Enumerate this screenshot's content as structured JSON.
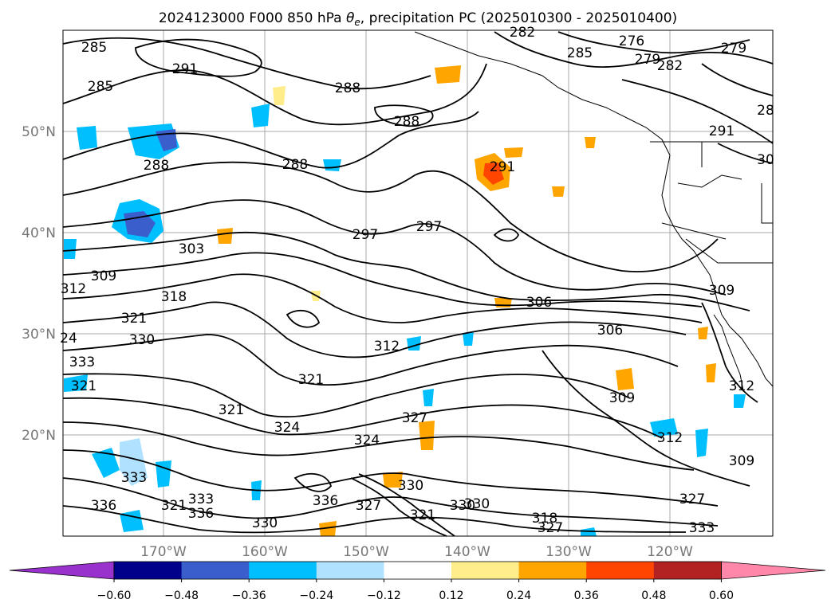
{
  "title": "2024123000 F000 850 hPa θe, precipitation PC (2025010300 - 2025010400)",
  "title_parts": {
    "pre": "2024123000 F000 850 hPa ",
    "theta": "θ",
    "sub": "e",
    "post": ", precipitation PC (2025010300 - 2025010400)"
  },
  "lat_labels": [
    "50°N",
    "40°N",
    "30°N",
    "20°N"
  ],
  "lon_labels": [
    "170°W",
    "160°W",
    "150°W",
    "140°W",
    "130°W",
    "120°W"
  ],
  "colorbar": {
    "ticks": [
      "−0.60",
      "−0.48",
      "−0.36",
      "−0.24",
      "−0.12",
      "0.12",
      "0.24",
      "0.36",
      "0.48",
      "0.60"
    ],
    "colors": [
      "#9932cc",
      "#00008b",
      "#3a5fcd",
      "#00bfff",
      "#b0e2ff",
      "#ffffff",
      "#ffec8b",
      "#ffa500",
      "#ff4500",
      "#b22222",
      "#ff88aa"
    ],
    "under_color": "#9932cc",
    "over_color": "#ff88aa"
  },
  "contour_labels": [
    "285",
    "291",
    "285",
    "288",
    "288",
    "282",
    "276",
    "285",
    "279",
    "282",
    "279",
    "28",
    "291",
    "30",
    "288",
    "288",
    "291",
    "297",
    "297",
    "303",
    "309",
    "312",
    "318",
    "321",
    "330",
    "333",
    "321",
    "24",
    "312",
    "306",
    "306",
    "309",
    "312",
    "321",
    "324",
    "327",
    "321",
    "324",
    "336",
    "333",
    "336",
    "333",
    "330",
    "336",
    "330",
    "321",
    "327",
    "330",
    "321",
    "318",
    "327",
    "330",
    "333",
    "309",
    "327",
    "312",
    "309"
  ],
  "precip_colors": {
    "orange": "#ffa500",
    "yellow": "#ffec8b",
    "red": "#ff4500",
    "lightblue": "#b0e2ff",
    "blue": "#00bfff",
    "royal": "#3a5fcd",
    "purple": "#9932cc"
  }
}
